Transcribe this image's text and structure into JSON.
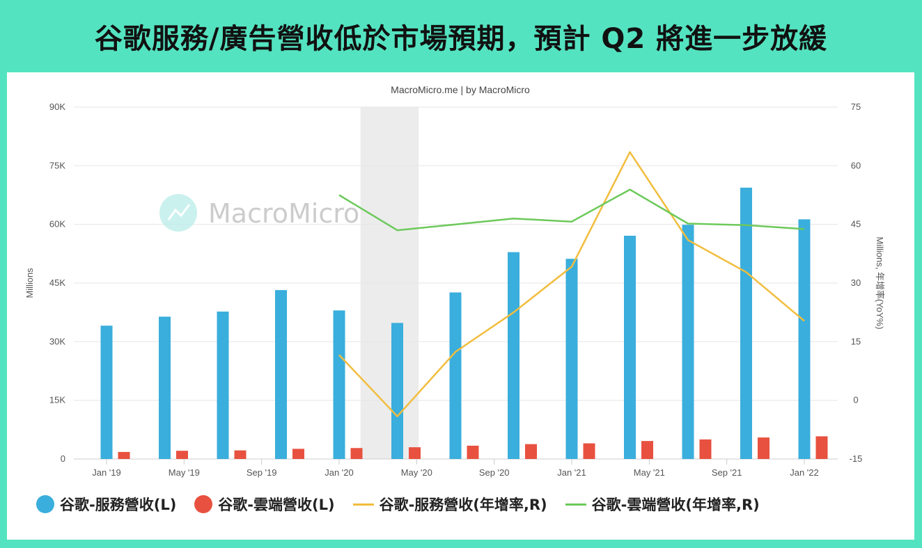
{
  "title": "谷歌服務/廣告營收低於市場預期，預計 Q2 將進一步放緩",
  "colors": {
    "frame": "#54e3c0",
    "services": "#3aaedc",
    "cloud": "#e8513f",
    "services_yoy": "#f2bd3d",
    "cloud_yoy": "#6cc95a",
    "recession": "#ececec"
  },
  "chart_data": {
    "type": "bar",
    "credit": "MacroMicro.me | by MacroMicro",
    "watermark": "MacroMicro",
    "ylabel_left": "Millions",
    "ylabel_right": "Millions, 年增率(YoY%)",
    "ylim_left": [
      0,
      90000
    ],
    "ylim_right": [
      -15,
      75
    ],
    "yticks_left": [
      "0",
      "15K",
      "30K",
      "45K",
      "60K",
      "75K",
      "90K"
    ],
    "yticks_right": [
      "-15",
      "0",
      "15",
      "30",
      "45",
      "60",
      "75"
    ],
    "xticks": [
      "Jan '19",
      "May '19",
      "Sep '19",
      "Jan '20",
      "May '20",
      "Sep '20",
      "Jan '21",
      "May '21",
      "Sep '21",
      "Jan '22"
    ],
    "categories": [
      "2019Q1",
      "2019Q2",
      "2019Q3",
      "2019Q4",
      "2020Q1",
      "2020Q2",
      "2020Q3",
      "2020Q4",
      "2021Q1",
      "2021Q2",
      "2021Q3",
      "2021Q4",
      "2022Q1"
    ],
    "shaded_period": [
      "2020-02",
      "2020-04"
    ],
    "series": [
      {
        "name": "谷歌-服務營收(L)",
        "kind": "bar",
        "axis": "left",
        "values": [
          34100,
          36400,
          37700,
          43200,
          38000,
          34800,
          42600,
          52900,
          51200,
          57100,
          59900,
          69400,
          61300
        ]
      },
      {
        "name": "谷歌-雲端營收(L)",
        "kind": "bar",
        "axis": "left",
        "values": [
          1800,
          2100,
          2200,
          2600,
          2800,
          3000,
          3400,
          3800,
          4000,
          4600,
          5000,
          5500,
          5800
        ]
      },
      {
        "name": "谷歌-服務營收(年增率,R)",
        "kind": "line",
        "axis": "right",
        "values": [
          null,
          null,
          null,
          null,
          11.6,
          -4.1,
          12.4,
          22.5,
          34.2,
          63.5,
          41.0,
          32.8,
          20.3
        ]
      },
      {
        "name": "谷歌-雲端營收(年增率,R)",
        "kind": "line",
        "axis": "right",
        "values": [
          null,
          null,
          null,
          null,
          52.5,
          43.5,
          45.0,
          46.5,
          45.7,
          53.9,
          45.2,
          44.8,
          43.8
        ]
      }
    ]
  }
}
